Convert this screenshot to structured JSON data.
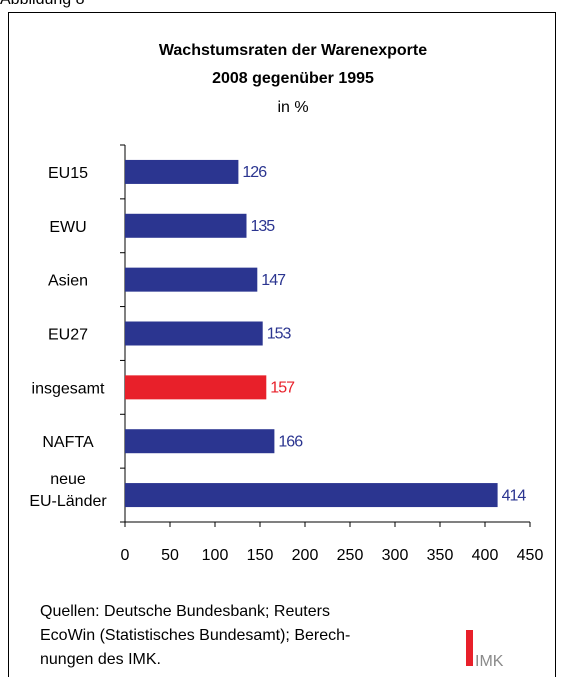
{
  "figure_label": "Abbildung 8",
  "chart_data": {
    "type": "hbar",
    "title": "Wachstumsraten der Warenexporte",
    "title_line2": "2008 gegenüber 1995",
    "subtitle": "in %",
    "categories": [
      "EU15",
      "EWU",
      "Asien",
      "EU27",
      "insgesamt",
      "NAFTA",
      "neue EU-Länder"
    ],
    "values": [
      126,
      135,
      147,
      153,
      157,
      166,
      414
    ],
    "colors": [
      "#2b3590",
      "#2b3590",
      "#2b3590",
      "#2b3590",
      "#e8202a",
      "#2b3590",
      "#2b3590"
    ],
    "xlim": [
      0,
      450
    ],
    "xticks": [
      0,
      50,
      100,
      150,
      200,
      250,
      300,
      350,
      400,
      450
    ],
    "grid": false
  },
  "source": [
    "Quellen: Deutsche Bundesbank; Reuters",
    "EcoWin (Statistisches Bundesamt); Berech-",
    "nungen des IMK."
  ],
  "logo": "IMK"
}
